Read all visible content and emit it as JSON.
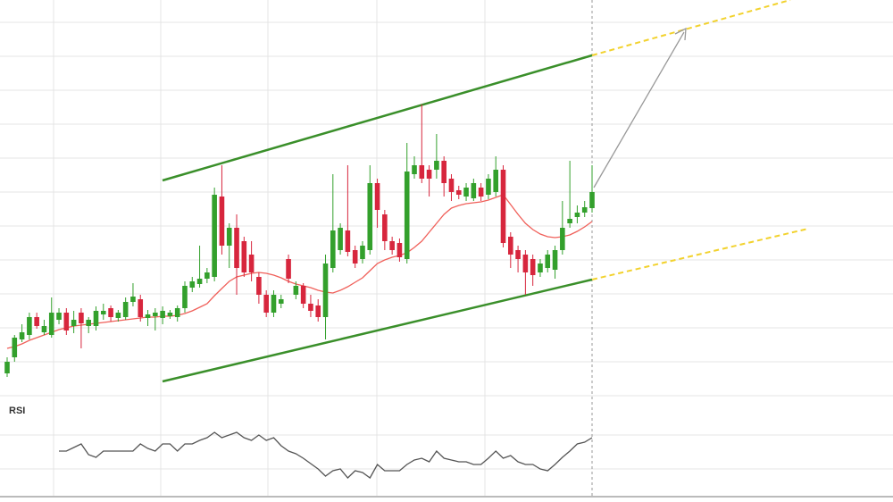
{
  "chart_data": {
    "type": "candlestick",
    "ylim": [
      0,
      443
    ],
    "up_color": "#33a02c",
    "down_color": "#d7263d",
    "open": [
      25,
      43,
      63,
      68,
      88,
      71,
      68,
      85,
      93,
      78,
      93,
      78,
      78,
      91,
      98,
      87,
      88,
      105,
      108,
      87,
      89,
      87,
      89,
      88,
      98,
      121,
      125,
      131,
      133,
      223,
      168,
      188,
      173,
      158,
      133,
      113,
      93,
      103,
      153,
      113,
      123,
      103,
      101,
      88,
      143,
      163,
      185,
      163,
      153,
      163,
      238,
      203,
      173,
      171,
      153,
      248,
      258,
      253,
      253,
      263,
      243,
      230,
      223,
      221,
      233,
      225,
      228,
      253,
      178,
      163,
      158,
      153,
      138,
      143,
      141,
      163,
      193,
      200,
      205,
      210
    ],
    "high": [
      43,
      68,
      80,
      93,
      93,
      85,
      110,
      98,
      98,
      95,
      98,
      88,
      100,
      103,
      101,
      96,
      110,
      126,
      113,
      96,
      98,
      100,
      96,
      101,
      128,
      133,
      168,
      143,
      233,
      258,
      193,
      203,
      178,
      173,
      138,
      118,
      118,
      113,
      158,
      128,
      126,
      113,
      108,
      158,
      248,
      193,
      258,
      168,
      173,
      258,
      243,
      208,
      178,
      176,
      283,
      268,
      326,
      258,
      293,
      268,
      248,
      235,
      238,
      243,
      238,
      248,
      268,
      258,
      183,
      168,
      163,
      158,
      153,
      163,
      168,
      218,
      263,
      213,
      218,
      258
    ],
    "low": [
      21,
      38,
      60,
      63,
      75,
      68,
      65,
      80,
      68,
      70,
      53,
      70,
      73,
      85,
      83,
      83,
      85,
      100,
      83,
      78,
      73,
      80,
      86,
      83,
      93,
      116,
      121,
      126,
      128,
      158,
      143,
      113,
      133,
      128,
      103,
      88,
      88,
      98,
      126,
      108,
      98,
      88,
      83,
      63,
      138,
      158,
      156,
      143,
      148,
      158,
      188,
      163,
      158,
      150,
      148,
      243,
      238,
      223,
      243,
      223,
      218,
      220,
      218,
      218,
      218,
      220,
      223,
      166,
      143,
      138,
      113,
      123,
      133,
      138,
      131,
      158,
      188,
      193,
      200,
      205
    ],
    "close": [
      38,
      65,
      71,
      88,
      78,
      78,
      93,
      93,
      73,
      85,
      81,
      85,
      95,
      95,
      88,
      93,
      105,
      111,
      88,
      91,
      93,
      95,
      93,
      98,
      123,
      128,
      131,
      138,
      225,
      168,
      188,
      143,
      138,
      138,
      113,
      93,
      113,
      108,
      131,
      123,
      103,
      95,
      88,
      148,
      185,
      188,
      161,
      148,
      168,
      238,
      208,
      173,
      163,
      155,
      251,
      258,
      243,
      243,
      263,
      238,
      228,
      225,
      233,
      238,
      223,
      243,
      253,
      171,
      158,
      153,
      138,
      135,
      148,
      158,
      163,
      188,
      198,
      205,
      211,
      228
    ],
    "ma": {
      "color": "#f0605a",
      "values": [
        53,
        55,
        58,
        62,
        65,
        68,
        71,
        74,
        76,
        78,
        79,
        80,
        81,
        82,
        83,
        84,
        85,
        86,
        87,
        88,
        88,
        89,
        89,
        90,
        92,
        95,
        99,
        103,
        112,
        120,
        128,
        133,
        135,
        137,
        138,
        137,
        135,
        132,
        128,
        125,
        123,
        121,
        118,
        116,
        115,
        118,
        122,
        127,
        132,
        140,
        148,
        152,
        155,
        157,
        160,
        166,
        173,
        183,
        193,
        203,
        210,
        213,
        215,
        216,
        217,
        219,
        222,
        225,
        214,
        203,
        193,
        186,
        181,
        178,
        177,
        178,
        180,
        184,
        189,
        195
      ]
    },
    "rsi": {
      "title": "RSI",
      "color": "#555555",
      "ylim": [
        0,
        80
      ],
      "values": [
        null,
        null,
        null,
        null,
        null,
        null,
        null,
        40,
        40,
        44,
        48,
        36,
        33,
        40,
        40,
        40,
        40,
        40,
        48,
        43,
        40,
        48,
        48,
        40,
        48,
        48,
        52,
        55,
        61,
        55,
        58,
        61,
        55,
        52,
        58,
        52,
        55,
        46,
        40,
        37,
        32,
        26,
        20,
        12,
        18,
        20,
        10,
        18,
        16,
        10,
        25,
        18,
        18,
        18,
        25,
        30,
        32,
        28,
        40,
        32,
        30,
        28,
        28,
        25,
        25,
        32,
        40,
        32,
        35,
        28,
        25,
        25,
        20,
        18,
        25,
        33,
        40,
        48,
        50,
        55
      ]
    }
  }
}
